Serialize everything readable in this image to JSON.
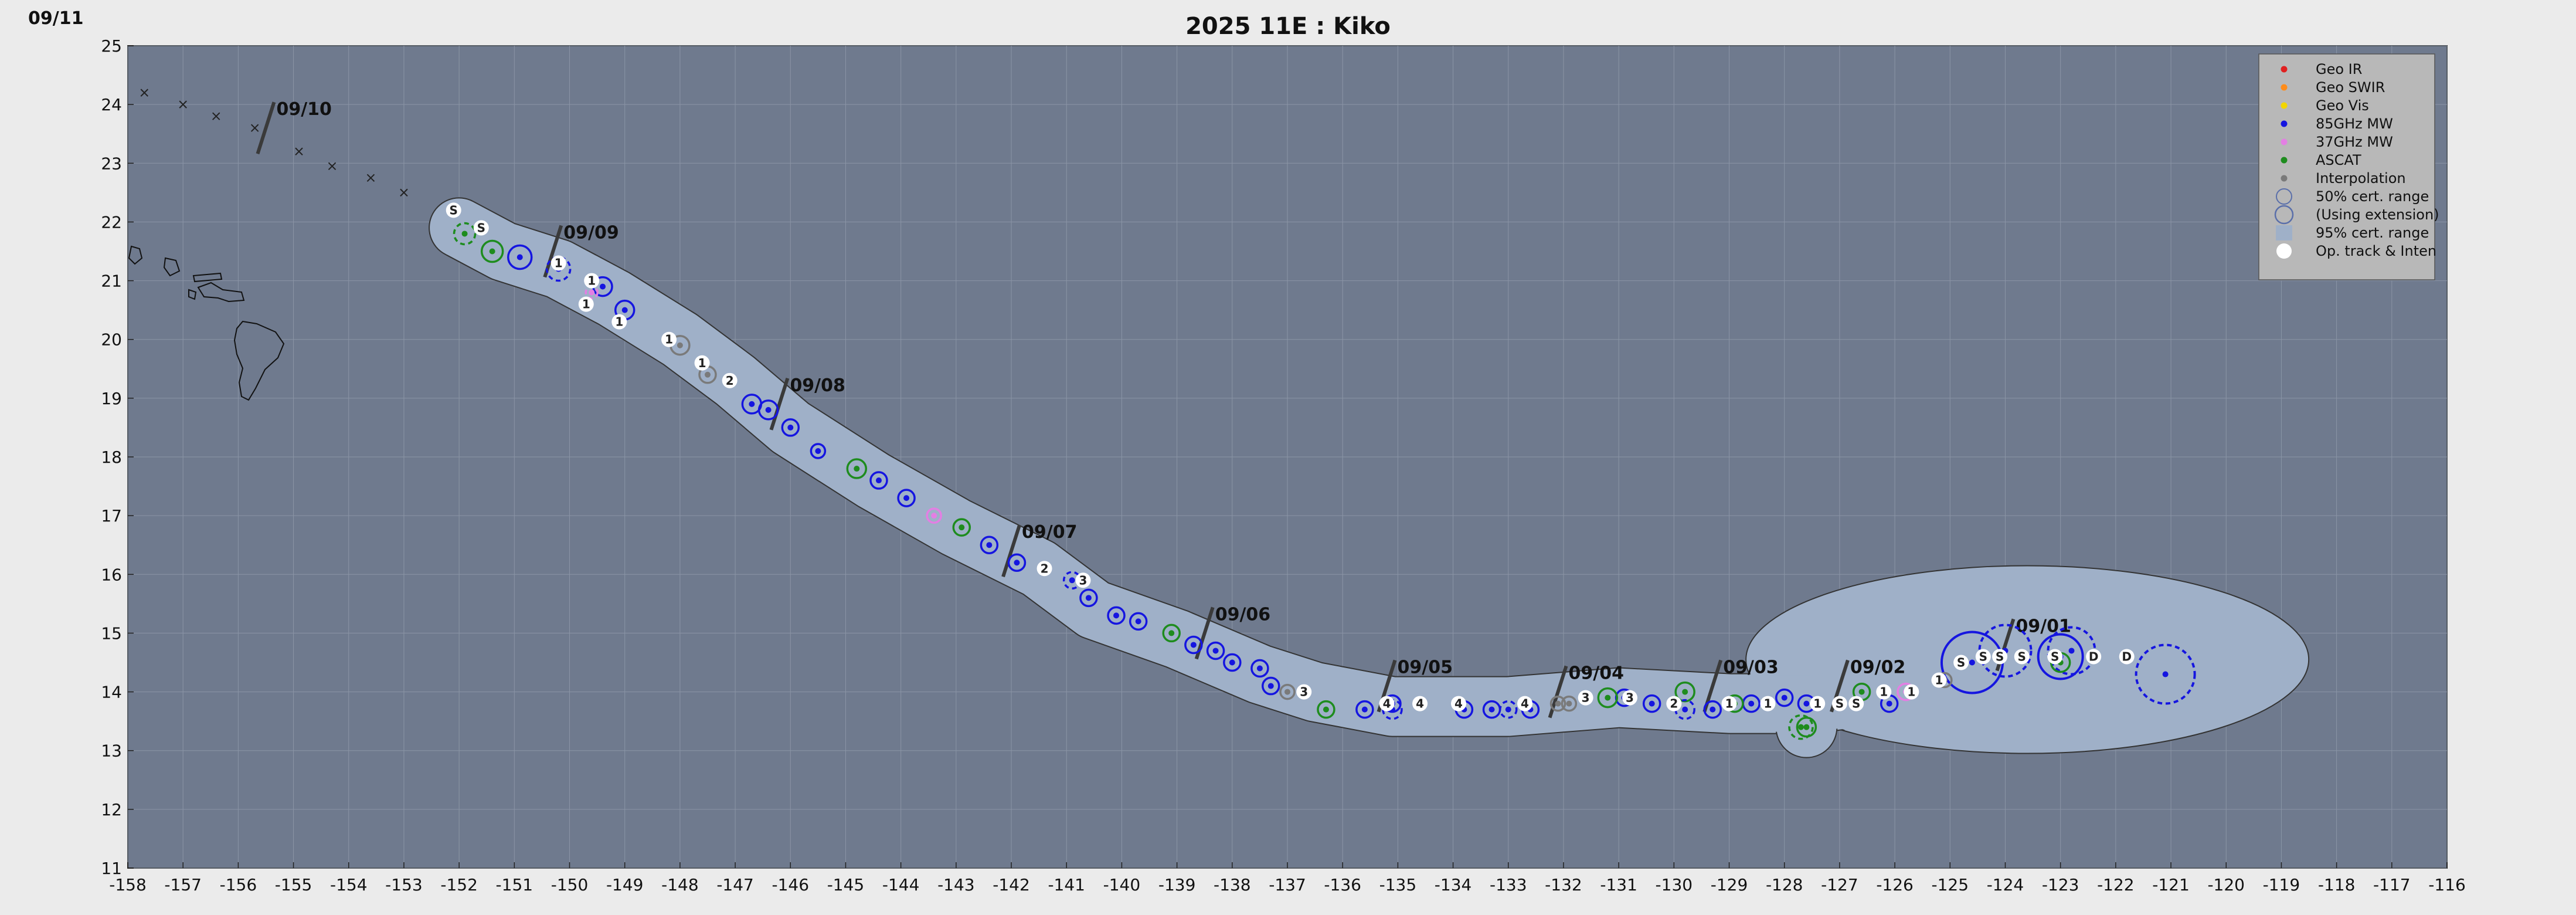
{
  "corner_date": "09/11",
  "title": "2025  11E :  Kiko",
  "legend": [
    {
      "label": "Geo IR",
      "marker": "dot",
      "color": "#e02020"
    },
    {
      "label": "Geo SWIR",
      "marker": "dot",
      "color": "#ff8c1a"
    },
    {
      "label": "Geo Vis",
      "marker": "dot",
      "color": "#f2d600"
    },
    {
      "label": "85GHz MW",
      "marker": "dot",
      "color": "#1515e0"
    },
    {
      "label": "37GHz MW",
      "marker": "dot",
      "color": "#e37fe3"
    },
    {
      "label": "ASCAT",
      "marker": "dot",
      "color": "#1e8c1e"
    },
    {
      "label": "Interpolation",
      "marker": "dot",
      "color": "#7a7a7a"
    },
    {
      "label": "50% cert. range",
      "marker": "ring",
      "color": "#5a6faa"
    },
    {
      "label": "(Using extension)",
      "marker": "ring-big",
      "color": "#5a6faa"
    },
    {
      "label": "95% cert. range",
      "marker": "patch",
      "color": "#9fb0c8"
    },
    {
      "label": "Op. track & Inten",
      "marker": "white-dot",
      "color": "#ffffff"
    }
  ],
  "colors": {
    "ocean": "#6f7a8e",
    "cone": "#9fb0c8",
    "frame": "#ebebeb",
    "mw85": "#1515e0",
    "ascat": "#1e8c1e",
    "mw37": "#e37fe3",
    "interp": "#7a7a7a"
  },
  "chart_data": {
    "type": "track map",
    "title": "2025  11E :  Kiko",
    "xlim": [
      -158,
      -116
    ],
    "ylim": [
      11,
      25
    ],
    "xticks": [
      "-158",
      "-157",
      "-156",
      "-155",
      "-154",
      "-153",
      "-152",
      "-151",
      "-150",
      "-149",
      "-148",
      "-147",
      "-146",
      "-145",
      "-144",
      "-143",
      "-142",
      "-141",
      "-140",
      "-139",
      "-138",
      "-137",
      "-136",
      "-135",
      "-134",
      "-133",
      "-132",
      "-131",
      "-130",
      "-129",
      "-128",
      "-127",
      "-126",
      "-125",
      "-124",
      "-123",
      "-122",
      "-121",
      "-120",
      "-119",
      "-118",
      "-117",
      "-116"
    ],
    "yticks": [
      "11",
      "12",
      "13",
      "14",
      "15",
      "16",
      "17",
      "18",
      "19",
      "20",
      "21",
      "22",
      "23",
      "24",
      "25"
    ],
    "grid": true,
    "legend_position": "top-right",
    "date_markers": [
      {
        "label": "09/01",
        "lon": -124.0,
        "lat": 14.8
      },
      {
        "label": "09/02",
        "lon": -127.0,
        "lat": 14.1
      },
      {
        "label": "09/03",
        "lon": -129.3,
        "lat": 14.1
      },
      {
        "label": "09/04",
        "lon": -132.1,
        "lat": 14.0
      },
      {
        "label": "09/05",
        "lon": -135.2,
        "lat": 14.1
      },
      {
        "label": "09/06",
        "lon": -138.5,
        "lat": 15.0
      },
      {
        "label": "09/07",
        "lon": -142.0,
        "lat": 16.4
      },
      {
        "label": "09/08",
        "lon": -146.2,
        "lat": 18.9
      },
      {
        "label": "09/09",
        "lon": -150.3,
        "lat": 21.5
      },
      {
        "label": "09/10",
        "lon": -155.5,
        "lat": 23.6
      }
    ],
    "forecast_track": [
      {
        "lon": -153.0,
        "lat": 22.5
      },
      {
        "lon": -153.6,
        "lat": 22.75
      },
      {
        "lon": -154.3,
        "lat": 22.95
      },
      {
        "lon": -154.9,
        "lat": 23.2
      },
      {
        "lon": -155.7,
        "lat": 23.6
      },
      {
        "lon": -156.4,
        "lat": 23.8
      },
      {
        "lon": -157.0,
        "lat": 24.0
      },
      {
        "lon": -157.7,
        "lat": 24.2
      }
    ],
    "op_track": [
      {
        "lon": -121.8,
        "lat": 14.6,
        "label": "D"
      },
      {
        "lon": -122.4,
        "lat": 14.6,
        "label": "D"
      },
      {
        "lon": -123.1,
        "lat": 14.6,
        "label": "S"
      },
      {
        "lon": -123.7,
        "lat": 14.6,
        "label": "S"
      },
      {
        "lon": -124.1,
        "lat": 14.6,
        "label": "S"
      },
      {
        "lon": -124.4,
        "lat": 14.6,
        "label": "S"
      },
      {
        "lon": -124.8,
        "lat": 14.5,
        "label": "S"
      },
      {
        "lon": -125.2,
        "lat": 14.2,
        "label": "1"
      },
      {
        "lon": -125.7,
        "lat": 14.0,
        "label": "1"
      },
      {
        "lon": -126.2,
        "lat": 14.0,
        "label": "1"
      },
      {
        "lon": -126.7,
        "lat": 13.8,
        "label": "S"
      },
      {
        "lon": -127.0,
        "lat": 13.8,
        "label": "S"
      },
      {
        "lon": -127.4,
        "lat": 13.8,
        "label": "1"
      },
      {
        "lon": -128.3,
        "lat": 13.8,
        "label": "1"
      },
      {
        "lon": -129.0,
        "lat": 13.8,
        "label": "1"
      },
      {
        "lon": -130.0,
        "lat": 13.8,
        "label": "2"
      },
      {
        "lon": -130.8,
        "lat": 13.9,
        "label": "3"
      },
      {
        "lon": -131.6,
        "lat": 13.9,
        "label": "3"
      },
      {
        "lon": -132.7,
        "lat": 13.8,
        "label": "4"
      },
      {
        "lon": -133.9,
        "lat": 13.8,
        "label": "4"
      },
      {
        "lon": -134.6,
        "lat": 13.8,
        "label": "4"
      },
      {
        "lon": -135.2,
        "lat": 13.8,
        "label": "4"
      },
      {
        "lon": -136.7,
        "lat": 14.0,
        "label": "3"
      },
      {
        "lon": -140.7,
        "lat": 15.9,
        "label": "3"
      },
      {
        "lon": -141.4,
        "lat": 16.1,
        "label": "2"
      },
      {
        "lon": -147.1,
        "lat": 19.3,
        "label": "2"
      },
      {
        "lon": -147.6,
        "lat": 19.6,
        "label": "1"
      },
      {
        "lon": -148.2,
        "lat": 20.0,
        "label": "1"
      },
      {
        "lon": -149.1,
        "lat": 20.3,
        "label": "1"
      },
      {
        "lon": -149.7,
        "lat": 20.6,
        "label": "1"
      },
      {
        "lon": -149.6,
        "lat": 21.0,
        "label": "1"
      },
      {
        "lon": -150.2,
        "lat": 21.3,
        "label": "1"
      },
      {
        "lon": -151.6,
        "lat": 21.9,
        "label": "S"
      },
      {
        "lon": -152.1,
        "lat": 22.2,
        "label": "S"
      }
    ],
    "fixes": [
      {
        "lon": -121.1,
        "lat": 14.3,
        "type": "85GHz MW",
        "ring": 50,
        "dashed": true
      },
      {
        "lon": -122.8,
        "lat": 14.7,
        "type": "85GHz MW",
        "ring": 40,
        "dashed": true
      },
      {
        "lon": -123.0,
        "lat": 14.6,
        "type": "85GHz MW",
        "ring": 38,
        "dashed": false
      },
      {
        "lon": -123.0,
        "lat": 14.5,
        "type": "ASCAT",
        "ring": 16,
        "dashed": false
      },
      {
        "lon": -124.0,
        "lat": 14.7,
        "type": "85GHz MW",
        "ring": 44,
        "dashed": true
      },
      {
        "lon": -124.6,
        "lat": 14.5,
        "type": "85GHz MW",
        "ring": 52,
        "dashed": false
      },
      {
        "lon": -125.1,
        "lat": 14.2,
        "type": "Interpolation",
        "ring": 12,
        "dashed": false
      },
      {
        "lon": -125.8,
        "lat": 14.0,
        "type": "37GHz MW",
        "ring": 14,
        "dashed": false
      },
      {
        "lon": -126.1,
        "lat": 13.8,
        "type": "85GHz MW",
        "ring": 14,
        "dashed": false
      },
      {
        "lon": -126.6,
        "lat": 14.0,
        "type": "ASCAT",
        "ring": 14,
        "dashed": false
      },
      {
        "lon": -127.6,
        "lat": 13.8,
        "type": "85GHz MW",
        "ring": 14,
        "dashed": false
      },
      {
        "lon": -127.6,
        "lat": 13.4,
        "type": "ASCAT",
        "ring": 16,
        "dashed": false
      },
      {
        "lon": -127.7,
        "lat": 13.4,
        "type": "ASCAT",
        "ring": 20,
        "dashed": true
      },
      {
        "lon": -128.0,
        "lat": 13.9,
        "type": "85GHz MW",
        "ring": 14,
        "dashed": false
      },
      {
        "lon": -128.6,
        "lat": 13.8,
        "type": "85GHz MW",
        "ring": 14,
        "dashed": false
      },
      {
        "lon": -128.9,
        "lat": 13.8,
        "type": "ASCAT",
        "ring": 14,
        "dashed": false
      },
      {
        "lon": -129.3,
        "lat": 13.7,
        "type": "85GHz MW",
        "ring": 14,
        "dashed": false
      },
      {
        "lon": -129.8,
        "lat": 14.0,
        "type": "ASCAT",
        "ring": 16,
        "dashed": false
      },
      {
        "lon": -129.8,
        "lat": 13.7,
        "type": "85GHz MW",
        "ring": 16,
        "dashed": true
      },
      {
        "lon": -130.4,
        "lat": 13.8,
        "type": "85GHz MW",
        "ring": 14,
        "dashed": false
      },
      {
        "lon": -130.9,
        "lat": 13.9,
        "type": "85GHz MW",
        "ring": 14,
        "dashed": false
      },
      {
        "lon": -131.2,
        "lat": 13.9,
        "type": "ASCAT",
        "ring": 16,
        "dashed": false
      },
      {
        "lon": -131.9,
        "lat": 13.8,
        "type": "Interpolation",
        "ring": 12,
        "dashed": false
      },
      {
        "lon": -132.1,
        "lat": 13.8,
        "type": "Interpolation",
        "ring": 12,
        "dashed": false
      },
      {
        "lon": -132.6,
        "lat": 13.7,
        "type": "85GHz MW",
        "ring": 14,
        "dashed": false
      },
      {
        "lon": -133.0,
        "lat": 13.7,
        "type": "85GHz MW",
        "ring": 14,
        "dashed": true
      },
      {
        "lon": -133.3,
        "lat": 13.7,
        "type": "85GHz MW",
        "ring": 14,
        "dashed": false
      },
      {
        "lon": -133.8,
        "lat": 13.7,
        "type": "85GHz MW",
        "ring": 14,
        "dashed": false
      },
      {
        "lon": -135.1,
        "lat": 13.8,
        "type": "85GHz MW",
        "ring": 14,
        "dashed": false
      },
      {
        "lon": -135.1,
        "lat": 13.7,
        "type": "85GHz MW",
        "ring": 16,
        "dashed": true
      },
      {
        "lon": -135.6,
        "lat": 13.7,
        "type": "85GHz MW",
        "ring": 14,
        "dashed": false
      },
      {
        "lon": -136.3,
        "lat": 13.7,
        "type": "ASCAT",
        "ring": 14,
        "dashed": false
      },
      {
        "lon": -137.0,
        "lat": 14.0,
        "type": "Interpolation",
        "ring": 12,
        "dashed": false
      },
      {
        "lon": -137.3,
        "lat": 14.1,
        "type": "85GHz MW",
        "ring": 14,
        "dashed": false
      },
      {
        "lon": -137.5,
        "lat": 14.4,
        "type": "85GHz MW",
        "ring": 14,
        "dashed": false
      },
      {
        "lon": -138.0,
        "lat": 14.5,
        "type": "85GHz MW",
        "ring": 14,
        "dashed": false
      },
      {
        "lon": -138.3,
        "lat": 14.7,
        "type": "85GHz MW",
        "ring": 14,
        "dashed": false
      },
      {
        "lon": -138.7,
        "lat": 14.8,
        "type": "85GHz MW",
        "ring": 14,
        "dashed": false
      },
      {
        "lon": -139.1,
        "lat": 15.0,
        "type": "ASCAT",
        "ring": 14,
        "dashed": false
      },
      {
        "lon": -139.7,
        "lat": 15.2,
        "type": "85GHz MW",
        "ring": 14,
        "dashed": false
      },
      {
        "lon": -140.1,
        "lat": 15.3,
        "type": "85GHz MW",
        "ring": 14,
        "dashed": false
      },
      {
        "lon": -140.6,
        "lat": 15.6,
        "type": "85GHz MW",
        "ring": 14,
        "dashed": false
      },
      {
        "lon": -140.9,
        "lat": 15.9,
        "type": "85GHz MW",
        "ring": 14,
        "dashed": true
      },
      {
        "lon": -141.9,
        "lat": 16.2,
        "type": "85GHz MW",
        "ring": 14,
        "dashed": false
      },
      {
        "lon": -142.4,
        "lat": 16.5,
        "type": "85GHz MW",
        "ring": 14,
        "dashed": false
      },
      {
        "lon": -142.9,
        "lat": 16.8,
        "type": "ASCAT",
        "ring": 14,
        "dashed": false
      },
      {
        "lon": -143.4,
        "lat": 17.0,
        "type": "37GHz MW",
        "ring": 12,
        "dashed": false
      },
      {
        "lon": -143.9,
        "lat": 17.3,
        "type": "85GHz MW",
        "ring": 14,
        "dashed": false
      },
      {
        "lon": -144.4,
        "lat": 17.6,
        "type": "85GHz MW",
        "ring": 14,
        "dashed": false
      },
      {
        "lon": -144.8,
        "lat": 17.8,
        "type": "ASCAT",
        "ring": 16,
        "dashed": false
      },
      {
        "lon": -145.5,
        "lat": 18.1,
        "type": "85GHz MW",
        "ring": 12,
        "dashed": false
      },
      {
        "lon": -146.0,
        "lat": 18.5,
        "type": "85GHz MW",
        "ring": 14,
        "dashed": false
      },
      {
        "lon": -146.4,
        "lat": 18.8,
        "type": "85GHz MW",
        "ring": 16,
        "dashed": false
      },
      {
        "lon": -146.7,
        "lat": 18.9,
        "type": "85GHz MW",
        "ring": 16,
        "dashed": false
      },
      {
        "lon": -147.5,
        "lat": 19.4,
        "type": "Interpolation",
        "ring": 14,
        "dashed": false
      },
      {
        "lon": -148.0,
        "lat": 19.9,
        "type": "Interpolation",
        "ring": 16,
        "dashed": false
      },
      {
        "lon": -149.0,
        "lat": 20.5,
        "type": "85GHz MW",
        "ring": 16,
        "dashed": false
      },
      {
        "lon": -149.4,
        "lat": 20.9,
        "type": "85GHz MW",
        "ring": 16,
        "dashed": false
      },
      {
        "lon": -150.2,
        "lat": 21.2,
        "type": "85GHz MW",
        "ring": 20,
        "dashed": true
      },
      {
        "lon": -149.6,
        "lat": 20.8,
        "type": "37GHz MW",
        "ring": 10,
        "dashed": true
      },
      {
        "lon": -150.9,
        "lat": 21.4,
        "type": "85GHz MW",
        "ring": 20,
        "dashed": false
      },
      {
        "lon": -151.4,
        "lat": 21.5,
        "type": "ASCAT",
        "ring": 18,
        "dashed": false
      },
      {
        "lon": -151.9,
        "lat": 21.8,
        "type": "ASCAT",
        "ring": 18,
        "dashed": true
      }
    ]
  }
}
